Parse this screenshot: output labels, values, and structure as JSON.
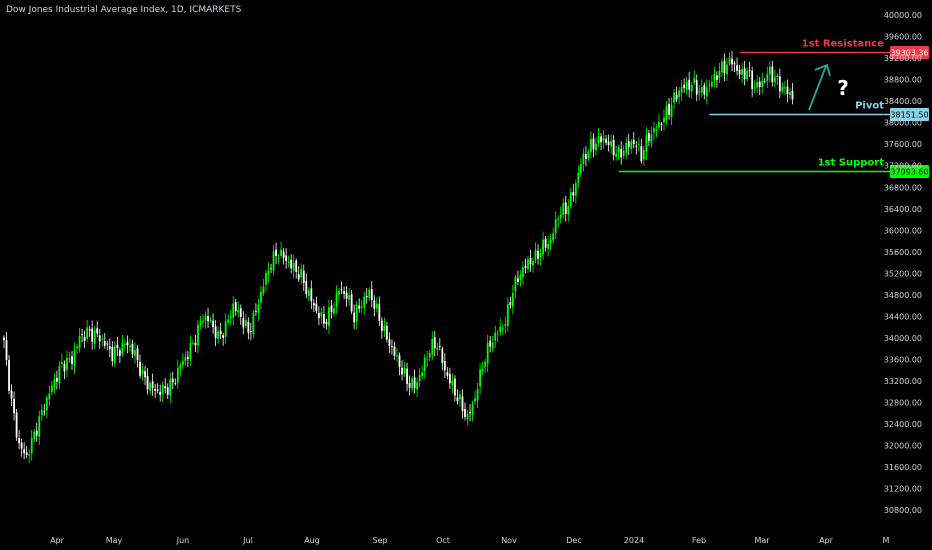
{
  "header": {
    "title": "Dow Jones Industrial Average Index, 1D, ICMARKETS"
  },
  "chart_data": {
    "type": "candlestick",
    "title": "Dow Jones Industrial Average Index, 1D, ICMARKETS",
    "ylim": [
      30600,
      40000
    ],
    "y_ticks": [
      40000,
      39600,
      39200,
      38800,
      38400,
      38000,
      37600,
      37200,
      36800,
      36400,
      36000,
      35600,
      35200,
      34800,
      34400,
      34000,
      33600,
      33200,
      32800,
      32400,
      32000,
      31600,
      31200,
      30800
    ],
    "x_ticks": [
      "Apr",
      "May",
      "Jun",
      "Jul",
      "Aug",
      "Sep",
      "Oct",
      "Nov",
      "Dec",
      "2024",
      "Feb",
      "Mar",
      "Apr",
      "M"
    ],
    "anchors": [
      [
        0,
        33900
      ],
      [
        3,
        32800
      ],
      [
        6,
        32000
      ],
      [
        9,
        31800
      ],
      [
        12,
        32200
      ],
      [
        15,
        32600
      ],
      [
        19,
        33100
      ],
      [
        23,
        33500
      ],
      [
        27,
        33600
      ],
      [
        30,
        34000
      ],
      [
        33,
        34100
      ],
      [
        37,
        34050
      ],
      [
        40,
        33900
      ],
      [
        43,
        33700
      ],
      [
        46,
        33800
      ],
      [
        49,
        33900
      ],
      [
        52,
        33700
      ],
      [
        55,
        33300
      ],
      [
        58,
        33100
      ],
      [
        61,
        33000
      ],
      [
        64,
        33050
      ],
      [
        67,
        33150
      ],
      [
        70,
        33500
      ],
      [
        73,
        33700
      ],
      [
        76,
        34000
      ],
      [
        79,
        34400
      ],
      [
        82,
        34300
      ],
      [
        85,
        34000
      ],
      [
        88,
        34200
      ],
      [
        91,
        34600
      ],
      [
        94,
        34400
      ],
      [
        97,
        34100
      ],
      [
        100,
        34500
      ],
      [
        103,
        35000
      ],
      [
        106,
        35400
      ],
      [
        109,
        35600
      ],
      [
        112,
        35450
      ],
      [
        115,
        35300
      ],
      [
        118,
        35150
      ],
      [
        121,
        34800
      ],
      [
        124,
        34500
      ],
      [
        127,
        34300
      ],
      [
        130,
        34500
      ],
      [
        133,
        34900
      ],
      [
        136,
        34800
      ],
      [
        139,
        34400
      ],
      [
        142,
        34650
      ],
      [
        145,
        34850
      ],
      [
        148,
        34500
      ],
      [
        151,
        34100
      ],
      [
        154,
        33800
      ],
      [
        157,
        33500
      ],
      [
        160,
        33200
      ],
      [
        163,
        33100
      ],
      [
        166,
        33400
      ],
      [
        169,
        33800
      ],
      [
        172,
        33900
      ],
      [
        175,
        33400
      ],
      [
        178,
        33100
      ],
      [
        181,
        32800
      ],
      [
        184,
        32500
      ],
      [
        187,
        32900
      ],
      [
        190,
        33500
      ],
      [
        193,
        33900
      ],
      [
        196,
        34100
      ],
      [
        199,
        34300
      ],
      [
        202,
        34900
      ],
      [
        205,
        35200
      ],
      [
        208,
        35400
      ],
      [
        211,
        35500
      ],
      [
        214,
        35700
      ],
      [
        217,
        35800
      ],
      [
        220,
        36300
      ],
      [
        223,
        36400
      ],
      [
        226,
        36700
      ],
      [
        229,
        37250
      ],
      [
        232,
        37500
      ],
      [
        235,
        37650
      ],
      [
        238,
        37700
      ],
      [
        241,
        37550
      ],
      [
        244,
        37400
      ],
      [
        247,
        37550
      ],
      [
        250,
        37650
      ],
      [
        253,
        37400
      ],
      [
        256,
        37750
      ],
      [
        259,
        37900
      ],
      [
        262,
        38100
      ],
      [
        265,
        38350
      ],
      [
        268,
        38600
      ],
      [
        271,
        38700
      ],
      [
        274,
        38700
      ],
      [
        277,
        38550
      ],
      [
        280,
        38700
      ],
      [
        283,
        38900
      ],
      [
        286,
        39050
      ],
      [
        289,
        39150
      ],
      [
        292,
        38900
      ],
      [
        295,
        38950
      ],
      [
        298,
        38650
      ],
      [
        301,
        38750
      ],
      [
        304,
        38950
      ],
      [
        307,
        38750
      ],
      [
        310,
        38600
      ],
      [
        313,
        38500
      ]
    ],
    "n_candles": 314,
    "levels": [
      {
        "name": "1st Resistance",
        "value": 39303.36,
        "price_label": "39303.36",
        "color": "#f23645",
        "from_index": 292,
        "label_text_color": "#f23645",
        "price_label_text_color": "#ffffff"
      },
      {
        "name": "Pivot",
        "value": 38151.5,
        "price_label": "38151.50",
        "color": "#89d1ea",
        "from_index": 280,
        "label_text_color": "#89d1ea",
        "price_label_text_color": "#000000"
      },
      {
        "name": "1st Support",
        "value": 37093.6,
        "price_label": "37093.60",
        "color": "#00ff00",
        "from_index": 244,
        "label_text_color": "#00ff00",
        "price_label_text_color": "#000000"
      }
    ],
    "annotations": [
      {
        "type": "arrow",
        "color": "#26a69a"
      },
      {
        "type": "text",
        "text": "?",
        "color": "#ffffff"
      }
    ],
    "up_color": "#00ff00",
    "down_color": "#ffffff",
    "axis_text_color": "#d1d4dc",
    "grid": false
  }
}
